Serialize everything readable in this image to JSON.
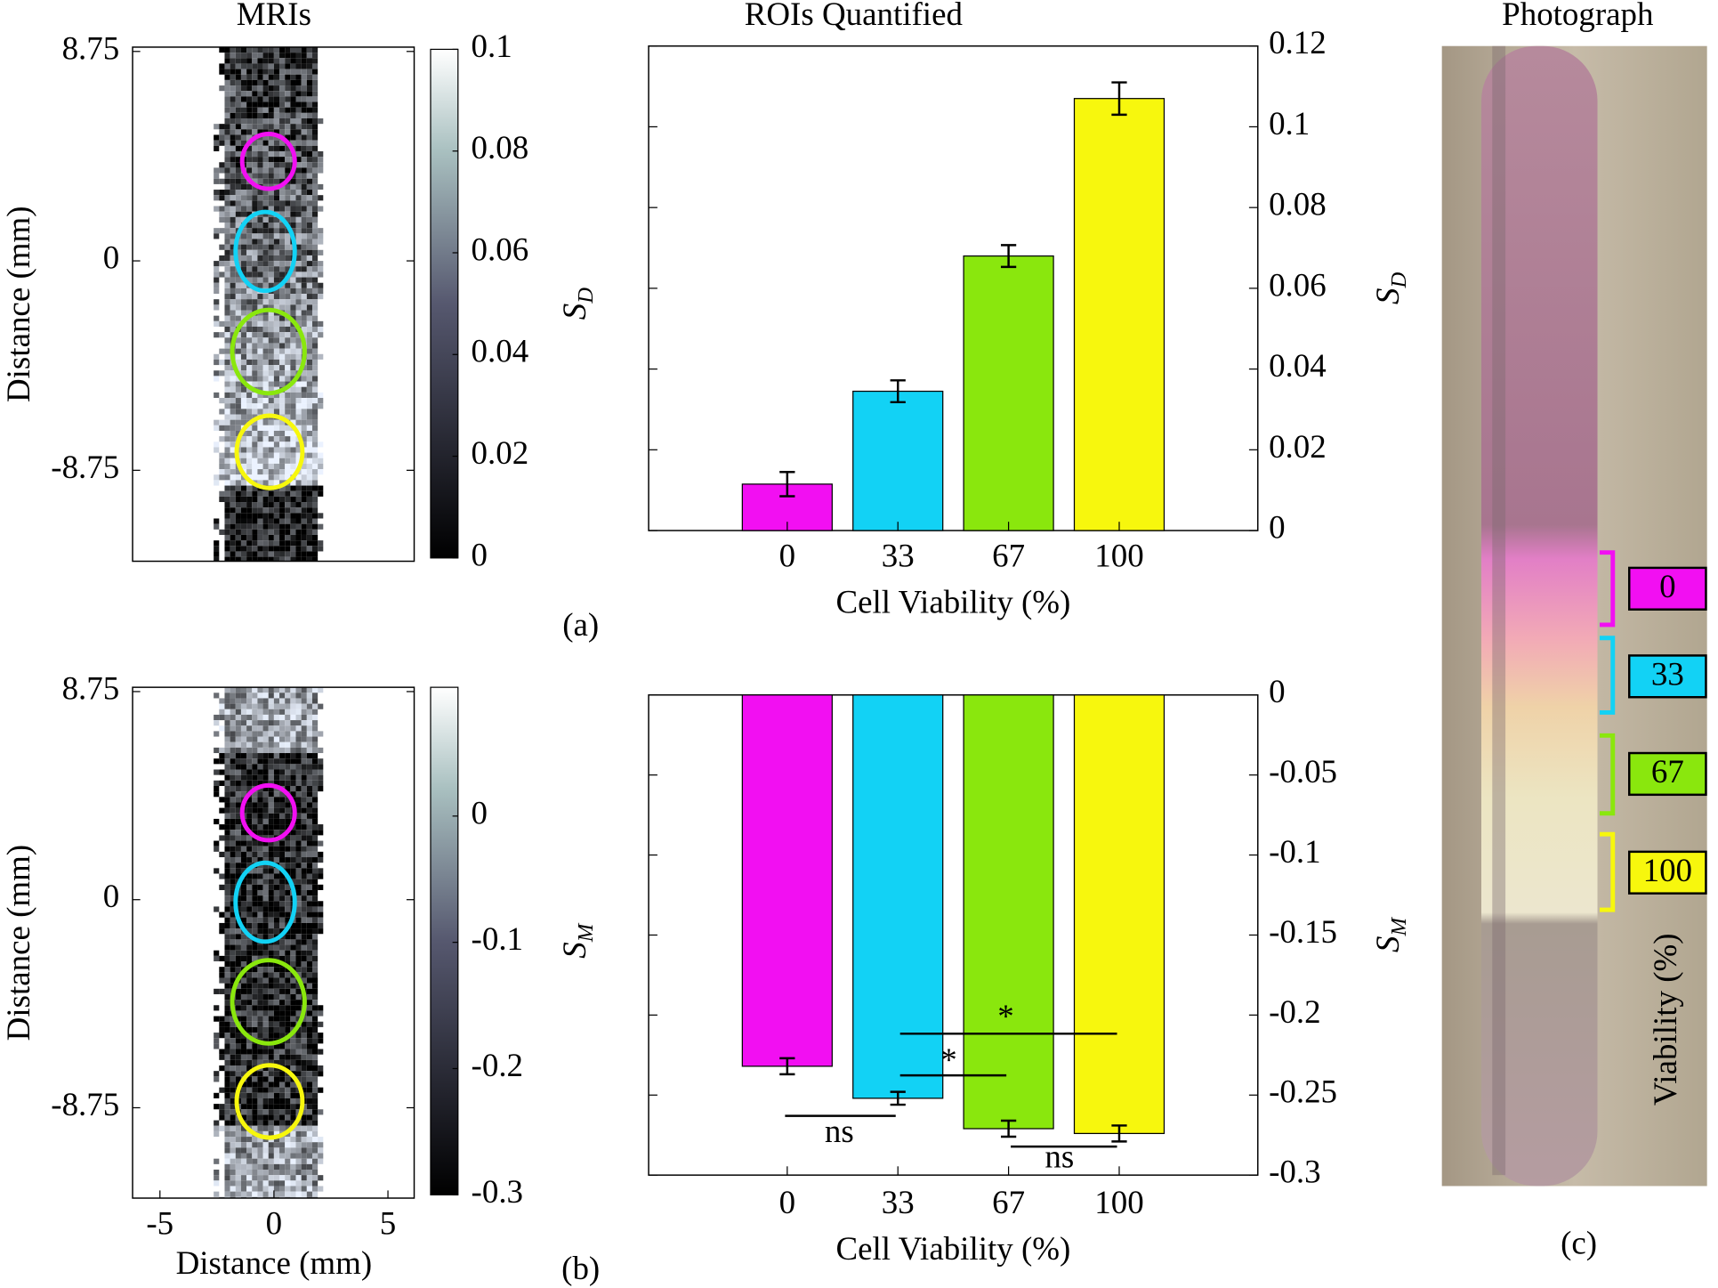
{
  "chart_data": [
    {
      "type": "image",
      "title": "MRIs",
      "ylabel": "Distance (mm)",
      "panel_label": "(a)",
      "ylim": [
        -12.55,
        8.93
      ],
      "yticks": [
        8.75,
        0,
        -8.75
      ],
      "xlim": [
        -6.2,
        6.15
      ],
      "colorbar": {
        "label": {
          "symbol": "S",
          "subscript": "D"
        },
        "lim": [
          0,
          0.1
        ],
        "ticks": [
          0,
          0.02,
          0.04,
          0.06,
          0.08,
          0.1
        ]
      }
    },
    {
      "type": "bar",
      "title": "ROIs Quantified",
      "xlabel": "Cell Viability (%)",
      "ylabel": {
        "symbol": "S",
        "subscript": "D"
      },
      "categories": [
        "0",
        "33",
        "67",
        "100"
      ],
      "values": [
        0.0115,
        0.0345,
        0.068,
        0.107
      ],
      "errors": [
        0.003,
        0.0027,
        0.0027,
        0.004
      ],
      "colors": [
        "#f20ff2",
        "#12d2f5",
        "#8ae70d",
        "#f7f70d"
      ],
      "ylim": [
        0,
        0.12
      ],
      "yticks": [
        0,
        0.02,
        0.04,
        0.06,
        0.08,
        0.1,
        0.12
      ]
    },
    {
      "type": "image",
      "ylabel": "Distance (mm)",
      "xlabel": "Distance (mm)",
      "panel_label": "(b)",
      "ylim": [
        -12.55,
        8.93
      ],
      "yticks": [
        8.75,
        0,
        -8.75
      ],
      "xlim": [
        -6.2,
        6.15
      ],
      "xticks": [
        -5,
        0,
        5
      ],
      "colorbar": {
        "label": {
          "symbol": "S",
          "subscript": "M"
        },
        "lim": [
          -0.3,
          0.102
        ],
        "ticks": [
          0,
          -0.1,
          -0.2,
          -0.3
        ]
      }
    },
    {
      "type": "bar",
      "xlabel": "Cell Viability (%)",
      "ylabel": {
        "symbol": "S",
        "subscript": "M"
      },
      "categories": [
        "0",
        "33",
        "67",
        "100"
      ],
      "values": [
        -0.232,
        -0.252,
        -0.271,
        -0.274
      ],
      "errors": [
        0.005,
        0.004,
        0.005,
        0.005
      ],
      "colors": [
        "#f20ff2",
        "#12d2f5",
        "#8ae70d",
        "#f7f70d"
      ],
      "ylim": [
        -0.3,
        0
      ],
      "yticks": [
        0,
        -0.05,
        -0.1,
        -0.15,
        -0.2,
        -0.25,
        -0.3
      ],
      "annotations": [
        "*",
        "*",
        "ns",
        "ns"
      ]
    }
  ],
  "photograph": {
    "title": "Photograph",
    "labels": [
      "0",
      "33",
      "67",
      "100"
    ],
    "ylabel": "Viability (%)",
    "panel_label": "(c)"
  }
}
